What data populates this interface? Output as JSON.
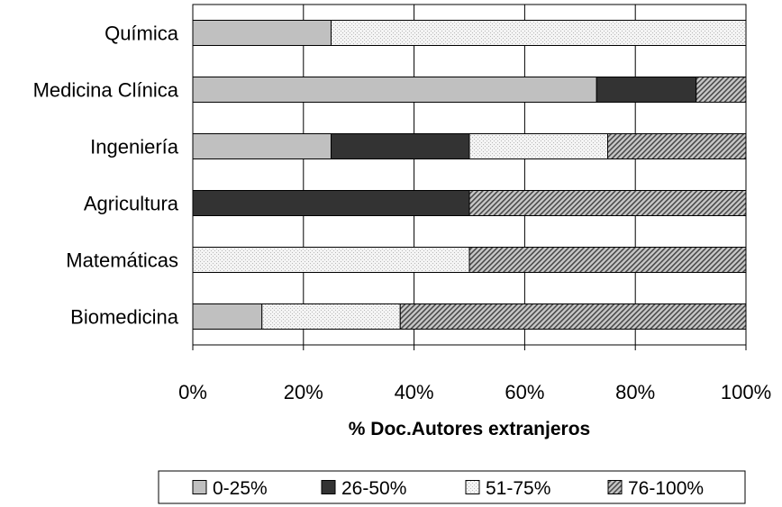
{
  "chart_data": {
    "type": "bar",
    "orientation": "horizontal",
    "stacked": true,
    "normalized_percent": true,
    "categories": [
      "Química",
      "Medicina Clínica",
      "Ingeniería",
      "Agricultura",
      "Matemáticas",
      "Biomedicina"
    ],
    "series": [
      {
        "name": "0-25%",
        "values": [
          25,
          73,
          25,
          0,
          0,
          12.5
        ],
        "color": "#c0c0c0",
        "pattern": "solid"
      },
      {
        "name": "26-50%",
        "values": [
          0,
          18,
          25,
          50,
          0,
          0
        ],
        "color": "#333333",
        "pattern": "solid"
      },
      {
        "name": "51-75%",
        "values": [
          75,
          0,
          25,
          0,
          50,
          25
        ],
        "color": "#f2f2f2",
        "pattern": "dotted"
      },
      {
        "name": "76-100%",
        "values": [
          0,
          9,
          25,
          50,
          50,
          62.5
        ],
        "color": "#a0a0a0",
        "pattern": "diagonal-hatch"
      }
    ],
    "xlabel": "% Doc.Autores extranjeros",
    "ylabel": "",
    "xlim": [
      0,
      100
    ],
    "xticks": [
      "0%",
      "20%",
      "40%",
      "60%",
      "80%",
      "100%"
    ],
    "grid": true,
    "legend_position": "bottom"
  }
}
